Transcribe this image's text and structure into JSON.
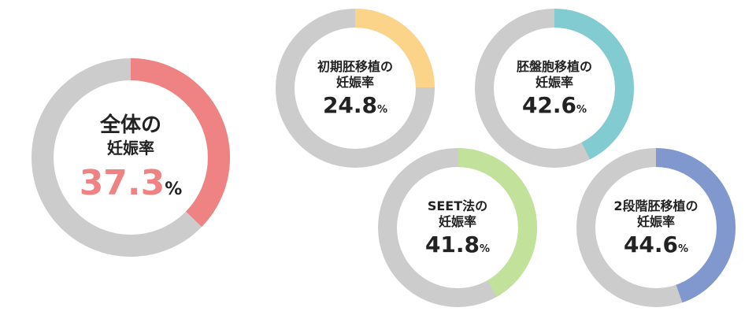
{
  "chart_data": [
    {
      "type": "pie",
      "title_line1": "全体の",
      "title_line2": "妊娠率",
      "value": 37.3,
      "value_text": "37.3",
      "unit": "%",
      "color": "#ef8282",
      "track_color": "#cccccc"
    },
    {
      "type": "pie",
      "title_line1": "初期胚移植の",
      "title_line2": "妊娠率",
      "value": 24.8,
      "value_text": "24.8",
      "unit": "%",
      "color": "#fbd48a",
      "track_color": "#cccccc"
    },
    {
      "type": "pie",
      "title_line1": "胚盤胞移植の",
      "title_line2": "妊娠率",
      "value": 42.6,
      "value_text": "42.6",
      "unit": "%",
      "color": "#82cbd0",
      "track_color": "#cccccc"
    },
    {
      "type": "pie",
      "title_line1": "SEET法の",
      "title_line2": "妊娠率",
      "value": 41.8,
      "value_text": "41.8",
      "unit": "%",
      "color": "#c2e19a",
      "track_color": "#cccccc"
    },
    {
      "type": "pie",
      "title_line1": "2段階胚移植の",
      "title_line2": "妊娠率",
      "value": 44.6,
      "value_text": "44.6",
      "unit": "%",
      "color": "#8198cf",
      "track_color": "#cccccc"
    }
  ]
}
